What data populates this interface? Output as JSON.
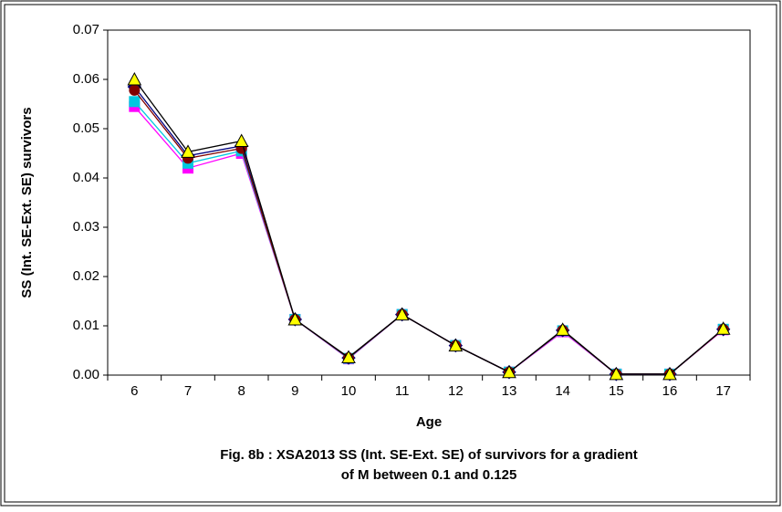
{
  "chart_data": {
    "type": "line",
    "title": [
      "Fig. 8b : XSA2013 SS (Int. SE-Ext. SE) of survivors for a gradient",
      "of M between 0.1 and 0.125"
    ],
    "x_label": "Age",
    "y_label": "SS (Int. SE-Ext. SE) survivors",
    "categories": [
      "6",
      "7",
      "8",
      "9",
      "10",
      "11",
      "12",
      "13",
      "14",
      "15",
      "16",
      "17"
    ],
    "ylim": [
      0,
      0.07
    ],
    "yticks": [
      {
        "value": 0,
        "label": "0.00"
      },
      0.01,
      0.02,
      0.03,
      0.04,
      0.05,
      0.06,
      0.07
    ],
    "series": [
      {
        "color": "#ff00ff",
        "marker": "square",
        "marker_fill": "#ff00ff",
        "values": [
          0.0545,
          0.042,
          0.045,
          0.0113,
          0.0033,
          0.0123,
          0.006,
          0.0006,
          0.0088,
          0.0002,
          0.0002,
          0.0092
        ]
      },
      {
        "color": "#00c8e0",
        "marker": "square",
        "marker_fill": "#00c8e0",
        "values": [
          0.0555,
          0.043,
          0.0455,
          0.0113,
          0.0034,
          0.0123,
          0.006,
          0.0006,
          0.009,
          0.0002,
          0.0002,
          0.0093
        ]
      },
      {
        "color": "#000080",
        "marker": "diamond",
        "marker_fill": "#000080",
        "values": [
          0.0585,
          0.0445,
          0.0465,
          0.0113,
          0.0035,
          0.0123,
          0.006,
          0.0006,
          0.0091,
          0.0002,
          0.0002,
          0.0093
        ]
      },
      {
        "color": "#800000",
        "marker": "circle",
        "marker_fill": "#800000",
        "values": [
          0.0578,
          0.044,
          0.046,
          0.0113,
          0.0035,
          0.0123,
          0.006,
          0.0006,
          0.0091,
          0.0002,
          0.0002,
          0.0093
        ]
      },
      {
        "color": "#000000",
        "marker": "triangle",
        "marker_fill": "#ffff00",
        "values": [
          0.06,
          0.0453,
          0.0475,
          0.0113,
          0.0036,
          0.0123,
          0.006,
          0.0006,
          0.0092,
          0.0002,
          0.0002,
          0.0094
        ]
      }
    ]
  }
}
